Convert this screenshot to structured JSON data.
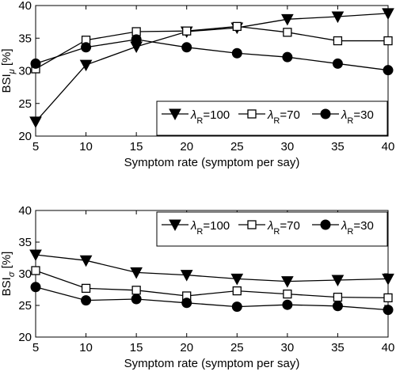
{
  "chart_data": [
    {
      "type": "line",
      "x": [
        5,
        10,
        15,
        20,
        25,
        30,
        35,
        40
      ],
      "xlabel": "Symptom rate (symptom per say)",
      "ylabel": "BSI",
      "ylabel_sub": "μ",
      "ylabel_unit": "[%]",
      "xlim": [
        5,
        40
      ],
      "ylim": [
        20,
        40
      ],
      "xticks": [
        5,
        10,
        15,
        20,
        25,
        30,
        35,
        40
      ],
      "yticks": [
        20,
        25,
        30,
        35,
        40
      ],
      "grid": false,
      "legend_position": "bottom-right",
      "series": [
        {
          "name": "λR=100",
          "label_main": "λ",
          "label_sub": "R",
          "label_value": "=100",
          "marker": "triangle-down",
          "values": [
            22.2,
            30.9,
            33.7,
            36.0,
            36.6,
            37.9,
            38.3,
            38.8
          ]
        },
        {
          "name": "λR=70",
          "label_main": "λ",
          "label_sub": "R",
          "label_value": "=70",
          "marker": "square-open",
          "values": [
            30.3,
            34.7,
            36.0,
            36.1,
            36.8,
            35.9,
            34.6,
            34.6
          ]
        },
        {
          "name": "λR=30",
          "label_main": "λ",
          "label_sub": "R",
          "label_value": "=30",
          "marker": "circle-filled",
          "values": [
            31.1,
            33.6,
            34.8,
            33.6,
            32.7,
            32.1,
            31.1,
            30.1
          ]
        }
      ]
    },
    {
      "type": "line",
      "x": [
        5,
        10,
        15,
        20,
        25,
        30,
        35,
        40
      ],
      "xlabel": "Symptom rate (symptom per say)",
      "ylabel": "BSI",
      "ylabel_sub": "σ",
      "ylabel_unit": "[%]",
      "xlim": [
        5,
        40
      ],
      "ylim": [
        20,
        40
      ],
      "xticks": [
        5,
        10,
        15,
        20,
        25,
        30,
        35,
        40
      ],
      "yticks": [
        20,
        25,
        30,
        35,
        40
      ],
      "grid": false,
      "legend_position": "top-right",
      "series": [
        {
          "name": "λR=100",
          "label_main": "λ",
          "label_sub": "R",
          "label_value": "=100",
          "marker": "triangle-down",
          "values": [
            33.0,
            32.1,
            30.2,
            29.8,
            29.2,
            28.8,
            29.0,
            29.2
          ]
        },
        {
          "name": "λR=70",
          "label_main": "λ",
          "label_sub": "R",
          "label_value": "=70",
          "marker": "square-open",
          "values": [
            30.5,
            27.7,
            27.4,
            26.5,
            27.3,
            26.8,
            26.3,
            26.2
          ]
        },
        {
          "name": "λR=30",
          "label_main": "λ",
          "label_sub": "R",
          "label_value": "=30",
          "marker": "circle-filled",
          "values": [
            27.9,
            25.8,
            26.0,
            25.4,
            24.8,
            25.1,
            24.9,
            24.3
          ]
        }
      ]
    }
  ]
}
